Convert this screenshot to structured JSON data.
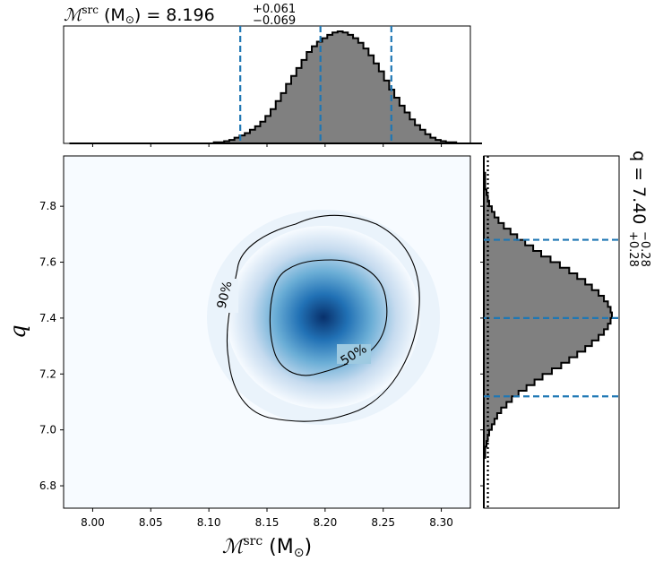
{
  "chart_data": {
    "type": "corner",
    "top_title": {
      "prefix": "ℳ",
      "sup": "src",
      "unit": " (M",
      "unit_sub": "⊙",
      "tail": ") = 8.196",
      "plus": "+0.061",
      "minus": "−0.069"
    },
    "right_title": {
      "text": "q = 7.40",
      "plus": "+0.28",
      "minus": "−0.28"
    },
    "xlabel": {
      "prefix": "ℳ",
      "sup": "src",
      "unit": " (M",
      "unit_sub": "⊙",
      "tail": ")"
    },
    "ylabel": "q",
    "x_ticks": [
      "8.00",
      "8.05",
      "8.10",
      "8.15",
      "8.20",
      "8.25",
      "8.30"
    ],
    "y_ticks": [
      "6.8",
      "7.0",
      "7.2",
      "7.4",
      "7.6",
      "7.8"
    ],
    "xlim": [
      7.975,
      8.325
    ],
    "ylim": [
      6.72,
      7.98
    ],
    "median_x": 8.196,
    "ci_x": [
      8.127,
      8.257
    ],
    "median_y": 7.4,
    "ci_y": [
      7.12,
      7.68
    ],
    "prior_line_x": 0.03,
    "contour_labels": [
      "90%",
      "50%"
    ],
    "colors": {
      "hist_fill": "#808080",
      "hist_edge": "#000000",
      "quantile": "#1f77b4",
      "density": "#08519c"
    },
    "hist_x_bins": [
      7.98,
      8.335
    ],
    "hist_x_values": [
      0,
      0,
      0,
      0,
      0,
      0,
      0,
      0,
      0,
      0,
      0,
      0,
      0,
      0,
      0,
      0,
      0,
      0,
      0,
      0,
      0,
      0,
      0,
      0,
      0,
      0,
      0,
      0,
      1,
      1,
      2,
      3,
      5,
      7,
      9,
      12,
      15,
      19,
      24,
      30,
      37,
      44,
      52,
      59,
      66,
      73,
      80,
      85,
      89,
      92,
      95,
      97,
      98,
      97,
      95,
      92,
      88,
      83,
      77,
      70,
      63,
      55,
      47,
      40,
      33,
      27,
      21,
      16,
      12,
      8,
      5,
      3,
      2,
      1,
      1,
      0,
      0,
      0,
      0,
      0
    ],
    "hist_y_bins": [
      6.72,
      7.98
    ],
    "hist_y_values": [
      0,
      0,
      0,
      0,
      0,
      0,
      0,
      0,
      0,
      1,
      1,
      2,
      3,
      4,
      6,
      8,
      10,
      13,
      17,
      21,
      26,
      32,
      38,
      44,
      51,
      58,
      64,
      70,
      76,
      81,
      86,
      90,
      93,
      95,
      96,
      95,
      93,
      90,
      86,
      81,
      76,
      70,
      64,
      57,
      50,
      43,
      37,
      31,
      25,
      20,
      15,
      11,
      8,
      6,
      4,
      3,
      2,
      1,
      1,
      1,
      0,
      0,
      0
    ]
  }
}
